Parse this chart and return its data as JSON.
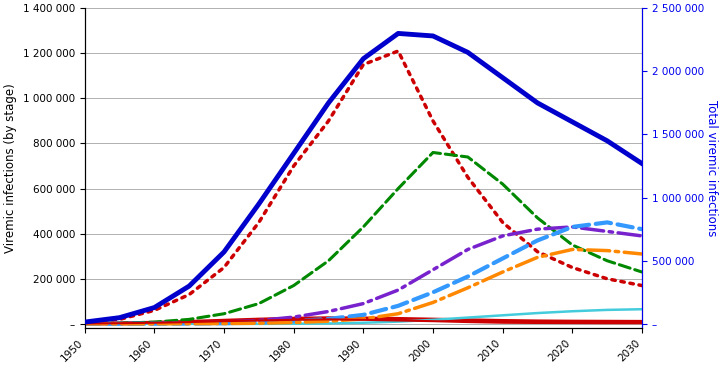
{
  "x_years": [
    1950,
    1955,
    1960,
    1965,
    1970,
    1975,
    1980,
    1985,
    1990,
    1995,
    2000,
    2005,
    2010,
    2015,
    2020,
    2025,
    2030
  ],
  "series": {
    "acute_solid_red": {
      "color": "#cc0000",
      "style": "solid",
      "lw": 1.5,
      "values": [
        2000,
        3000,
        5000,
        8000,
        12000,
        15000,
        18000,
        20000,
        18000,
        15000,
        12000,
        8000,
        5000,
        4000,
        3500,
        3000,
        2800
      ]
    },
    "chronic_mild": {
      "color": "#cc0000",
      "style": "dotted",
      "lw": 2.5,
      "values": [
        5000,
        20000,
        60000,
        130000,
        250000,
        450000,
        700000,
        900000,
        1150000,
        1210000,
        900000,
        650000,
        450000,
        320000,
        250000,
        200000,
        170000
      ]
    },
    "chronic_moderate": {
      "color": "#008800",
      "style": "dashed",
      "lw": 2.2,
      "values": [
        1000,
        3000,
        8000,
        20000,
        45000,
        90000,
        170000,
        280000,
        430000,
        600000,
        760000,
        740000,
        620000,
        470000,
        350000,
        280000,
        230000
      ]
    },
    "cirrhosis": {
      "color": "#7722cc",
      "style": "dashdot",
      "lw": 2.5,
      "values": [
        500,
        1000,
        2000,
        4000,
        8000,
        15000,
        30000,
        55000,
        90000,
        150000,
        240000,
        330000,
        390000,
        420000,
        430000,
        410000,
        390000
      ]
    },
    "decomp_cirrhosis": {
      "color": "#3399ff",
      "style": "dashed",
      "lw": 3.0,
      "values": [
        200,
        400,
        800,
        1500,
        3000,
        6000,
        12000,
        22000,
        40000,
        80000,
        140000,
        210000,
        290000,
        370000,
        430000,
        450000,
        420000
      ]
    },
    "hcc": {
      "color": "#ff8800",
      "style": "dashdot",
      "lw": 2.5,
      "values": [
        100,
        200,
        400,
        800,
        1500,
        3000,
        6000,
        12000,
        22000,
        45000,
        95000,
        160000,
        230000,
        295000,
        330000,
        325000,
        310000
      ]
    },
    "liver_transplant": {
      "color": "#44ccdd",
      "style": "solid",
      "lw": 1.8,
      "values": [
        0,
        0,
        0,
        0,
        0,
        0,
        500,
        2000,
        5000,
        10000,
        18000,
        28000,
        38000,
        48000,
        56000,
        62000,
        65000
      ]
    },
    "liver_related_death": {
      "color": "#cc0000",
      "style": "solid",
      "lw": 2.5,
      "values": [
        2000,
        3500,
        6000,
        10000,
        15000,
        20000,
        24000,
        26000,
        25000,
        23000,
        20000,
        17000,
        14000,
        12000,
        11000,
        10500,
        10000
      ]
    },
    "total": {
      "color": "#0000cc",
      "style": "solid",
      "lw": 3.5,
      "values": [
        15000,
        50000,
        130000,
        300000,
        570000,
        950000,
        1350000,
        1750000,
        2100000,
        2300000,
        2280000,
        2150000,
        1950000,
        1750000,
        1600000,
        1450000,
        1270000
      ]
    }
  },
  "xlim": [
    1950,
    2030
  ],
  "ylim_left": [
    -20000,
    1400000
  ],
  "ylim_right": [
    -35000,
    2500000
  ],
  "yticks_left": [
    0,
    200000,
    400000,
    600000,
    800000,
    1000000,
    1200000,
    1400000
  ],
  "ytick_labels_left": [
    "–",
    "200 000",
    "400 000",
    "600 000",
    "800 000",
    "1 000 000",
    "1 200 000",
    "1 400 000"
  ],
  "yticks_right": [
    0,
    500000,
    1000000,
    1500000,
    2000000,
    2500000
  ],
  "ytick_labels_right": [
    "–",
    "500 000",
    "1 000 000",
    "1 500 000",
    "2 000 000",
    "2 500 000"
  ],
  "xticks": [
    1950,
    1960,
    1970,
    1980,
    1990,
    2000,
    2010,
    2020,
    2030
  ],
  "ylabel_left": "Viremic infections (by stage)",
  "ylabel_right": "Total viremic infections",
  "ylabel_right_color": "#0000ee",
  "background_color": "#ffffff",
  "grid_color": "#b0b0b0",
  "grid_lw": 0.7
}
